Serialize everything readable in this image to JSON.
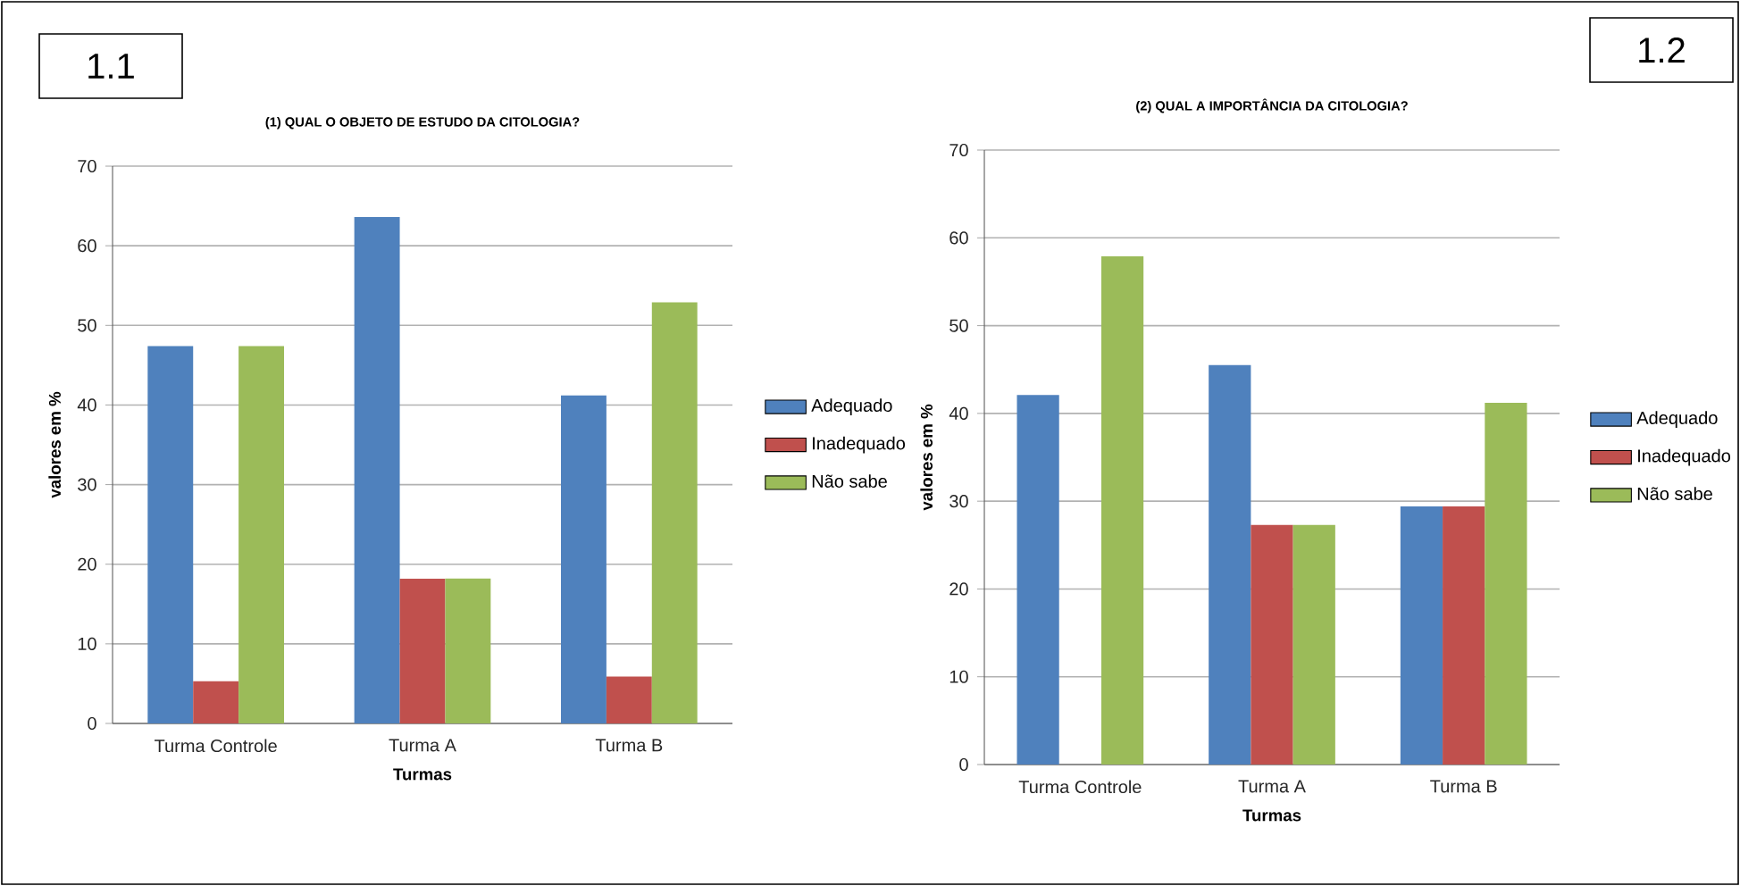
{
  "chart_data": [
    {
      "type": "bar",
      "title": "(1) QUAL O OBJETO DE ESTUDO DA CITOLOGIA?",
      "xlabel": "Turmas",
      "ylabel": "valores em %",
      "categories": [
        "Turma Controle",
        "Turma A",
        "Turma B"
      ],
      "series": [
        {
          "name": "Adequado",
          "color": "#4f81bd",
          "values": [
            47.4,
            63.6,
            41.2
          ]
        },
        {
          "name": "Inadequado",
          "color": "#c0504d",
          "values": [
            5.3,
            18.2,
            5.9
          ]
        },
        {
          "name": "Não sabe",
          "color": "#9bbb59",
          "values": [
            47.4,
            18.2,
            52.9
          ]
        }
      ],
      "ylim": [
        0,
        70
      ],
      "yticks": [
        0,
        10,
        20,
        30,
        40,
        50,
        60,
        70
      ],
      "grid": "y",
      "legend": "right",
      "annotations": [
        "1.1"
      ]
    },
    {
      "type": "bar",
      "title": "(2) QUAL A IMPORTÂNCIA DA CITOLOGIA?",
      "xlabel": "Turmas",
      "ylabel": "valores em %",
      "categories": [
        "Turma Controle",
        "Turma A",
        "Turma B"
      ],
      "series": [
        {
          "name": "Adequado",
          "color": "#4f81bd",
          "values": [
            42.1,
            45.5,
            29.4
          ]
        },
        {
          "name": "Inadequado",
          "color": "#c0504d",
          "values": [
            0,
            27.3,
            29.4
          ]
        },
        {
          "name": "Não sabe",
          "color": "#9bbb59",
          "values": [
            57.9,
            27.3,
            41.2
          ]
        }
      ],
      "ylim": [
        0,
        70
      ],
      "yticks": [
        0,
        10,
        20,
        30,
        40,
        50,
        60,
        70
      ],
      "grid": "y",
      "legend": "right",
      "annotations": [
        "1.2"
      ]
    }
  ]
}
